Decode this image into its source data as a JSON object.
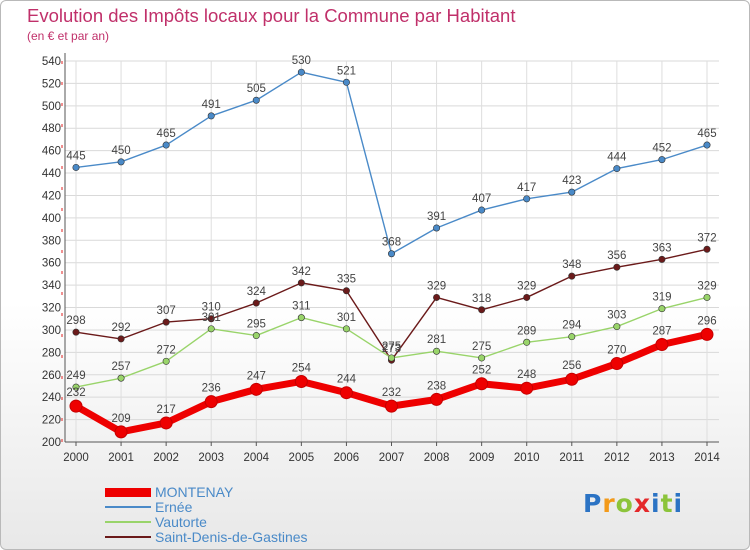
{
  "chart_data": {
    "type": "line",
    "title": "Evolution des Impôts locaux pour la Commune par Habitant",
    "subtitle": "(en € et par an)",
    "xlabel": "",
    "ylabel": "",
    "ylim": [
      200,
      540
    ],
    "yticks": [
      200,
      220,
      240,
      260,
      280,
      300,
      320,
      340,
      360,
      380,
      400,
      420,
      440,
      460,
      480,
      500,
      520,
      540
    ],
    "categories": [
      "2000",
      "2001",
      "2002",
      "2003",
      "2004",
      "2005",
      "2006",
      "2007",
      "2008",
      "2009",
      "2010",
      "2011",
      "2012",
      "2013",
      "2014"
    ],
    "grid": true,
    "legend_position": "bottom-left",
    "series": [
      {
        "name": "Ernée",
        "color": "#4a8ac8",
        "values": [
          445,
          450,
          465,
          491,
          505,
          530,
          521,
          368,
          391,
          407,
          417,
          423,
          444,
          452,
          465
        ]
      },
      {
        "name": "Saint-Denis-de-Gastines",
        "color": "#6b1a1a",
        "values": [
          298,
          292,
          307,
          310,
          324,
          342,
          335,
          273,
          329,
          318,
          329,
          348,
          356,
          363,
          372
        ]
      },
      {
        "name": "Vautorte",
        "color": "#99d46a",
        "values": [
          249,
          257,
          272,
          301,
          295,
          311,
          301,
          275,
          281,
          275,
          289,
          294,
          303,
          319,
          329
        ]
      },
      {
        "name": "MONTENAY",
        "color": "#ee0000",
        "values": [
          232,
          209,
          217,
          236,
          247,
          254,
          244,
          232,
          238,
          252,
          248,
          256,
          270,
          287,
          296
        ]
      }
    ],
    "legend_order": [
      "MONTENAY",
      "Ernée",
      "Vautorte",
      "Saint-Denis-de-Gastines"
    ]
  },
  "branding": {
    "logo_letters": [
      "P",
      "r",
      "o",
      "x",
      "i",
      "t",
      "i"
    ]
  }
}
